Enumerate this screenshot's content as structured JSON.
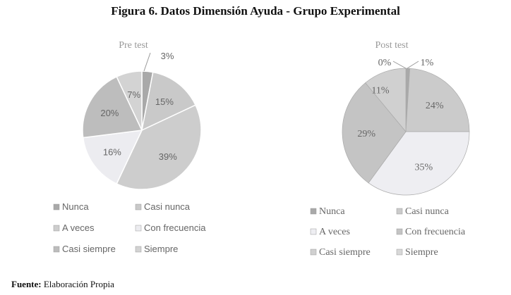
{
  "title": "Figura 6. Datos Dimensión Ayuda - Grupo Experimental",
  "source_label": "Fuente:",
  "source_text": "Elaboración Propia",
  "chart_data": [
    {
      "type": "pie",
      "title": "Pre test",
      "categories": [
        "Nunca",
        "Casi nunca",
        "A veces",
        "Con frecuencia",
        "Casi siempre",
        "Siempre"
      ],
      "values": [
        3,
        15,
        39,
        16,
        20,
        7
      ],
      "labels": [
        "3%",
        "15%",
        "39%",
        "16%",
        "20%",
        "7%"
      ],
      "colors": [
        "#a9a9a9",
        "#c9c9c9",
        "#cdcdcd",
        "#ececf0",
        "#bdbdbd",
        "#d3d3d3"
      ],
      "legend": "bottom"
    },
    {
      "type": "pie",
      "title": "Post test",
      "categories": [
        "Nunca",
        "Casi nunca",
        "A veces",
        "Con frecuencia",
        "Casi siempre",
        "Siempre"
      ],
      "values": [
        1,
        24,
        35,
        29,
        11,
        0
      ],
      "labels": [
        "1%",
        "24%",
        "35%",
        "29%",
        "11%",
        "0%"
      ],
      "colors": [
        "#a9a9a9",
        "#cbcbcb",
        "#eeeef2",
        "#c4c4c4",
        "#d0d0d0",
        "#d8d8d8"
      ],
      "legend": "bottom"
    }
  ]
}
